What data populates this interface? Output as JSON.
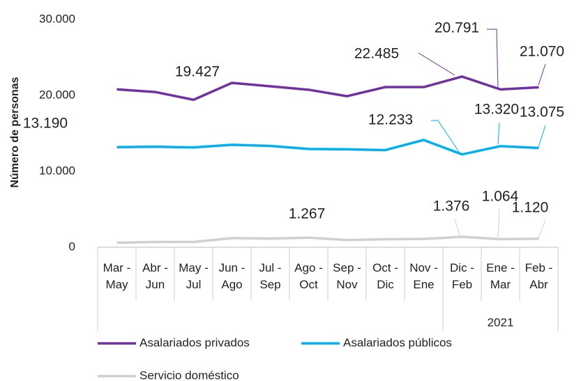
{
  "chart_data": {
    "type": "line",
    "y_label": "Número de personas",
    "categories": [
      "Mar - May",
      "Abr - Jun",
      "May - Jul",
      "Jun - Ago",
      "Jul - Sep",
      "Ago - Oct",
      "Sep - Nov",
      "Oct - Dic",
      "Nov - Ene",
      "Dic - Feb",
      "Ene - Mar",
      "Feb - Abr"
    ],
    "year_label": "2021",
    "ylim": [
      0,
      30000
    ],
    "yticks": [
      {
        "value": 0,
        "label": "0"
      },
      {
        "value": 10000,
        "label": "10.000"
      },
      {
        "value": 20000,
        "label": "20.000"
      },
      {
        "value": 30000,
        "label": "30.000"
      }
    ],
    "grid": false,
    "series": [
      {
        "name": "Asalariados privados",
        "color": "#7030a0",
        "values": [
          20800,
          20450,
          19427,
          21650,
          21200,
          20750,
          19900,
          21100,
          21100,
          22485,
          20791,
          21070
        ],
        "value_labels": [
          null,
          null,
          "19.427",
          null,
          null,
          null,
          null,
          null,
          null,
          "22.485",
          "20.791",
          "21.070"
        ]
      },
      {
        "name": "Asalariados públicos",
        "color": "#00b0f0",
        "values": [
          13190,
          13250,
          13150,
          13500,
          13350,
          12950,
          12900,
          12800,
          14130,
          12233,
          13320,
          13075
        ],
        "value_labels": [
          "13.190",
          null,
          null,
          null,
          null,
          null,
          null,
          null,
          null,
          "12.233",
          "13.320",
          "13.075"
        ]
      },
      {
        "name": "Servicio doméstico",
        "color": "#d0d0d0",
        "values": [
          600,
          700,
          700,
          1200,
          1150,
          1267,
          950,
          1050,
          1100,
          1376,
          1064,
          1120
        ],
        "value_labels": [
          null,
          null,
          null,
          null,
          null,
          "1.267",
          null,
          null,
          null,
          "1.376",
          "1.064",
          "1.120"
        ]
      }
    ]
  }
}
